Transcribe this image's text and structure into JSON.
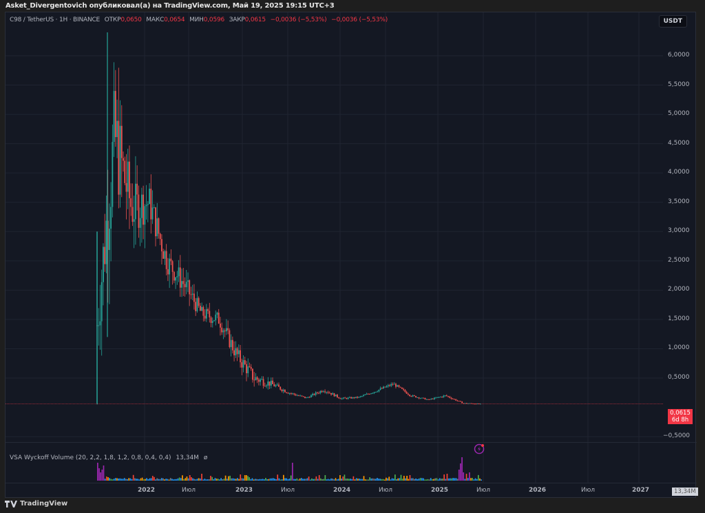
{
  "header": {
    "published_line": "Asket_Divergentovich опубликовал(а) на TradingView.com, Май 19, 2025 19:15 UTC+3"
  },
  "legend": {
    "symbol": "C98 / TetherUS · 1H · BINANCE",
    "open_label": "ОТКР",
    "open_value": "0,0650",
    "high_label": "МАКС",
    "high_value": "0,0654",
    "low_label": "МИН",
    "low_value": "0,0596",
    "close_label": "ЗАКР",
    "close_value": "0,0615",
    "change_1": "−0,0036 (−5,53%)",
    "change_2": "−0,0036 (−5,53%)"
  },
  "currency_button": "USDT",
  "price_axis": {
    "ticks": [
      "6,0000",
      "5,5000",
      "5,0000",
      "4,5000",
      "4,0000",
      "3,5000",
      "3,0000",
      "2,5000",
      "2,0000",
      "1,5000",
      "1,0000",
      "0,5000",
      "−0,5000"
    ],
    "current_price": "0,0615",
    "countdown": "6d 8h"
  },
  "time_axis": {
    "ticks": [
      "2022",
      "Июл",
      "2023",
      "Июл",
      "2024",
      "Июл",
      "2025",
      "Июл",
      "2026",
      "Июл",
      "2027"
    ]
  },
  "volume_indicator": {
    "legend": "VSA Wyckoff Volume (20, 2,2, 1,8, 1,2, 0,8, 0,4, 0,4)",
    "value": "13,34M",
    "hide_symbol": "ø",
    "axis_value": "13,34M"
  },
  "footer": {
    "brand": "TradingView"
  },
  "colors": {
    "up": "#26a69a",
    "down": "#ef5350",
    "background": "#141823",
    "price_line": "#f23645",
    "vol_climax": "#9c27b0",
    "vol_high": "#ff9800",
    "vol_mid": "#4caf50",
    "vol_low": "#2196f3",
    "vol_dim": "#787b86"
  },
  "chart_data": {
    "type": "candlestick",
    "title": "C98 / TetherUS · 1H · BINANCE",
    "ylabel": "USDT",
    "ylim": [
      -0.75,
      6.5
    ],
    "grid": true,
    "price_path": [
      {
        "t": "2021-07",
        "low": 0.05,
        "high": 3.0,
        "close": 1.4
      },
      {
        "t": "2021-08",
        "low": 1.1,
        "high": 6.4,
        "close": 4.6
      },
      {
        "t": "2021-09",
        "low": 2.7,
        "high": 5.3,
        "close": 3.4
      },
      {
        "t": "2021-10",
        "low": 2.9,
        "high": 4.6,
        "close": 3.5
      },
      {
        "t": "2021-11",
        "low": 2.4,
        "high": 3.6,
        "close": 2.5
      },
      {
        "t": "2021-12",
        "low": 1.7,
        "high": 2.8,
        "close": 2.1
      },
      {
        "t": "2022-01",
        "low": 1.3,
        "high": 2.0,
        "close": 1.6
      },
      {
        "t": "2022-02",
        "low": 1.2,
        "high": 1.95,
        "close": 1.5
      },
      {
        "t": "2022-03",
        "low": 0.8,
        "high": 1.6,
        "close": 0.9
      },
      {
        "t": "2022-04",
        "low": 0.35,
        "high": 1.0,
        "close": 0.5
      },
      {
        "t": "2022-06",
        "low": 0.3,
        "high": 0.6,
        "close": 0.4
      },
      {
        "t": "2022-09",
        "low": 0.2,
        "high": 0.35,
        "close": 0.25
      },
      {
        "t": "2022-12",
        "low": 0.14,
        "high": 0.22,
        "close": 0.16
      },
      {
        "t": "2023-02",
        "low": 0.2,
        "high": 0.38,
        "close": 0.3
      },
      {
        "t": "2023-06",
        "low": 0.13,
        "high": 0.22,
        "close": 0.15
      },
      {
        "t": "2023-10",
        "low": 0.13,
        "high": 0.2,
        "close": 0.17
      },
      {
        "t": "2024-01",
        "low": 0.2,
        "high": 0.33,
        "close": 0.28
      },
      {
        "t": "2024-03",
        "low": 0.3,
        "high": 0.45,
        "close": 0.4
      },
      {
        "t": "2024-06",
        "low": 0.18,
        "high": 0.28,
        "close": 0.2
      },
      {
        "t": "2024-09",
        "low": 0.12,
        "high": 0.17,
        "close": 0.13
      },
      {
        "t": "2024-12",
        "low": 0.18,
        "high": 0.28,
        "close": 0.2
      },
      {
        "t": "2025-03",
        "low": 0.06,
        "high": 0.1,
        "close": 0.07
      },
      {
        "t": "2025-05",
        "low": 0.0596,
        "high": 0.0654,
        "close": 0.0615
      }
    ],
    "last": {
      "open": 0.065,
      "high": 0.0654,
      "low": 0.0596,
      "close": 0.0615,
      "change": -0.0036,
      "change_pct": -5.53
    },
    "volume": {
      "last": "13,34M"
    }
  }
}
